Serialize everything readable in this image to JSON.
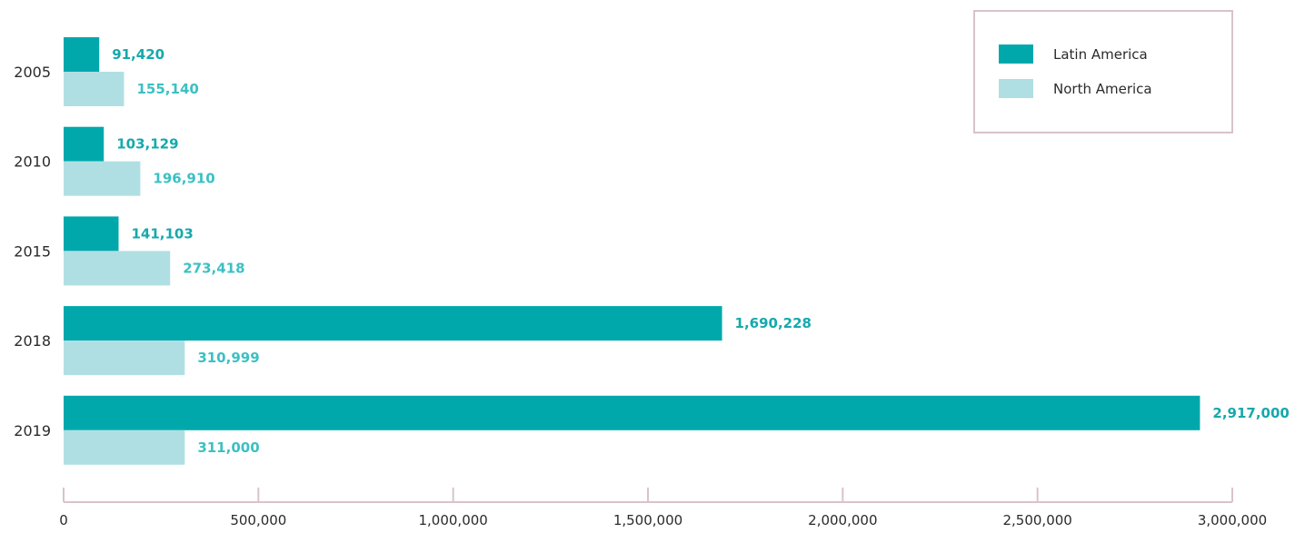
{
  "chart_data": {
    "type": "bar",
    "orientation": "horizontal",
    "categories": [
      "2005",
      "2010",
      "2015",
      "2018",
      "2019"
    ],
    "series": [
      {
        "name": "Latin America",
        "color": "#00a8ac",
        "values": [
          91420,
          103129,
          141103,
          1690228,
          2917000
        ],
        "labels": [
          "91,420",
          "103,129",
          "141,103",
          "1,690,228",
          "2,917,000"
        ],
        "label_color": "#15a9ad"
      },
      {
        "name": "North America",
        "color": "#b0dfe3",
        "values": [
          155140,
          196910,
          273418,
          310999,
          311000
        ],
        "labels": [
          "155,140",
          "196,910",
          "273,418",
          "310,999",
          "311,000"
        ],
        "label_color": "#3cc0c4"
      }
    ],
    "xlim": [
      0,
      3000000
    ],
    "x_ticks": [
      0,
      500000,
      1000000,
      1500000,
      2000000,
      2500000,
      3000000
    ],
    "x_tick_labels": [
      "0",
      "500,000",
      "1,000,000",
      "1,500,000",
      "2,000,000",
      "2,500,000",
      "3,000,000"
    ],
    "axis_color": "#d9c3c8",
    "legend_border_color": "#d9c3c8",
    "grid": false,
    "legend_position": "top-right",
    "title": "",
    "xlabel": "",
    "ylabel": ""
  }
}
